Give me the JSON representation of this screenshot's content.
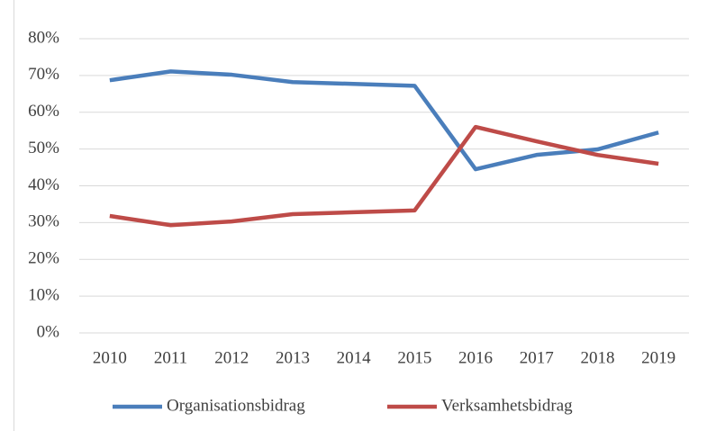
{
  "chart_data": {
    "type": "line",
    "categories": [
      "2010",
      "2011",
      "2012",
      "2013",
      "2014",
      "2015",
      "2016",
      "2017",
      "2018",
      "2019"
    ],
    "series": [
      {
        "name": "Organisationsbidrag",
        "color": "#4a7ebb",
        "values": [
          68.7,
          71.1,
          70.2,
          68.2,
          67.7,
          67.2,
          44.5,
          48.4,
          49.9,
          54.5
        ]
      },
      {
        "name": "Verksamhetsbidrag",
        "color": "#be4b48",
        "values": [
          31.8,
          29.3,
          30.3,
          32.3,
          32.8,
          33.3,
          56.0,
          52.1,
          48.4,
          46.0
        ]
      }
    ],
    "ylim": [
      0,
      80
    ],
    "yticks": [
      {
        "value": 0,
        "label": "0%"
      },
      {
        "value": 10,
        "label": "10%"
      },
      {
        "value": 20,
        "label": "20%"
      },
      {
        "value": 30,
        "label": "30%"
      },
      {
        "value": 40,
        "label": "40%"
      },
      {
        "value": 50,
        "label": "50%"
      },
      {
        "value": 60,
        "label": "60%"
      },
      {
        "value": 70,
        "label": "70%"
      },
      {
        "value": 80,
        "label": "80%"
      }
    ],
    "grid": true,
    "legend": "bottom"
  }
}
